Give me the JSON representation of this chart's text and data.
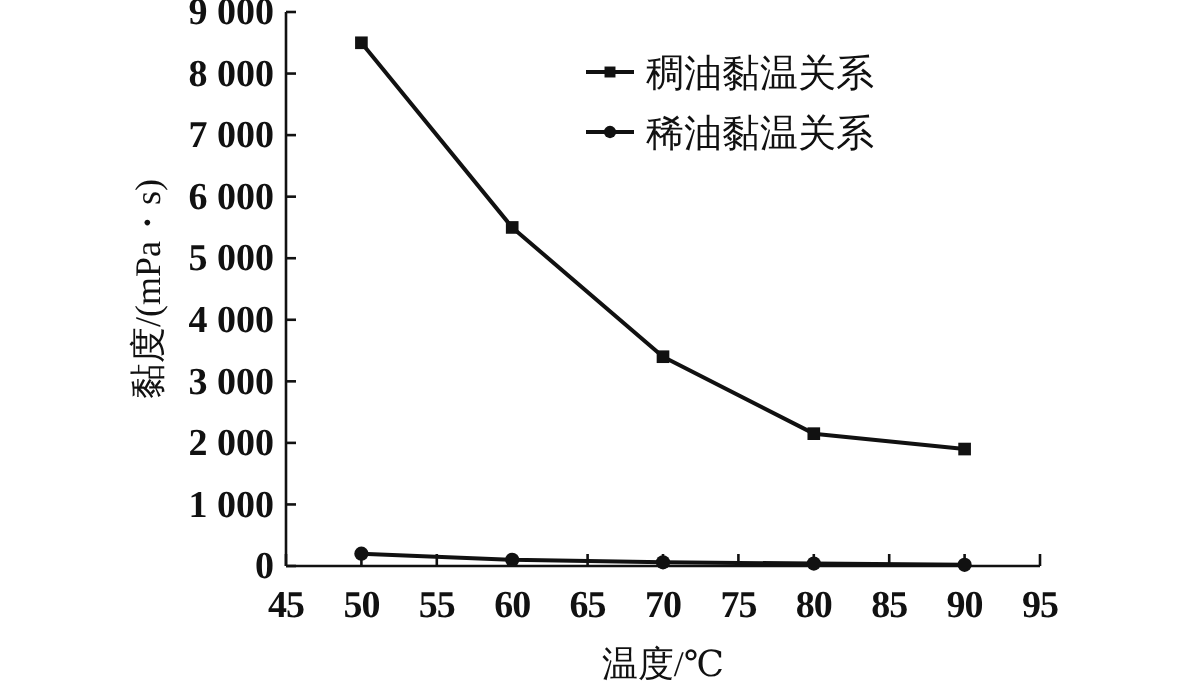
{
  "chart_data": {
    "type": "line",
    "xlabel": "温度/℃",
    "ylabel": "黏度/(mPa・s)",
    "x": [
      50,
      60,
      70,
      80,
      90
    ],
    "series": [
      {
        "name": "稠油黏温关系",
        "color": "#111111",
        "marker": "square",
        "values": [
          8500,
          5500,
          3400,
          2150,
          1900
        ]
      },
      {
        "name": "稀油黏温关系",
        "color": "#111111",
        "marker": "circle",
        "values": [
          200,
          100,
          60,
          40,
          20
        ]
      }
    ],
    "xlim": [
      45,
      95
    ],
    "xticks": [
      45,
      50,
      55,
      60,
      65,
      70,
      75,
      80,
      85,
      90,
      95
    ],
    "ylim": [
      0,
      9000
    ],
    "yticks": [
      0,
      {
        "value": 1000,
        "label": "1 000"
      },
      {
        "value": 2000,
        "label": "2 000"
      },
      {
        "value": 3000,
        "label": "3 000"
      },
      {
        "value": 4000,
        "label": "4 000"
      },
      {
        "value": 5000,
        "label": "5 000"
      },
      {
        "value": 6000,
        "label": "6 000"
      },
      {
        "value": 7000,
        "label": "7 000"
      },
      {
        "value": 8000,
        "label": "8 000"
      },
      {
        "value": 9000,
        "label": "9 000"
      }
    ],
    "legend": "top right",
    "grid": false,
    "line_style": "solid"
  }
}
